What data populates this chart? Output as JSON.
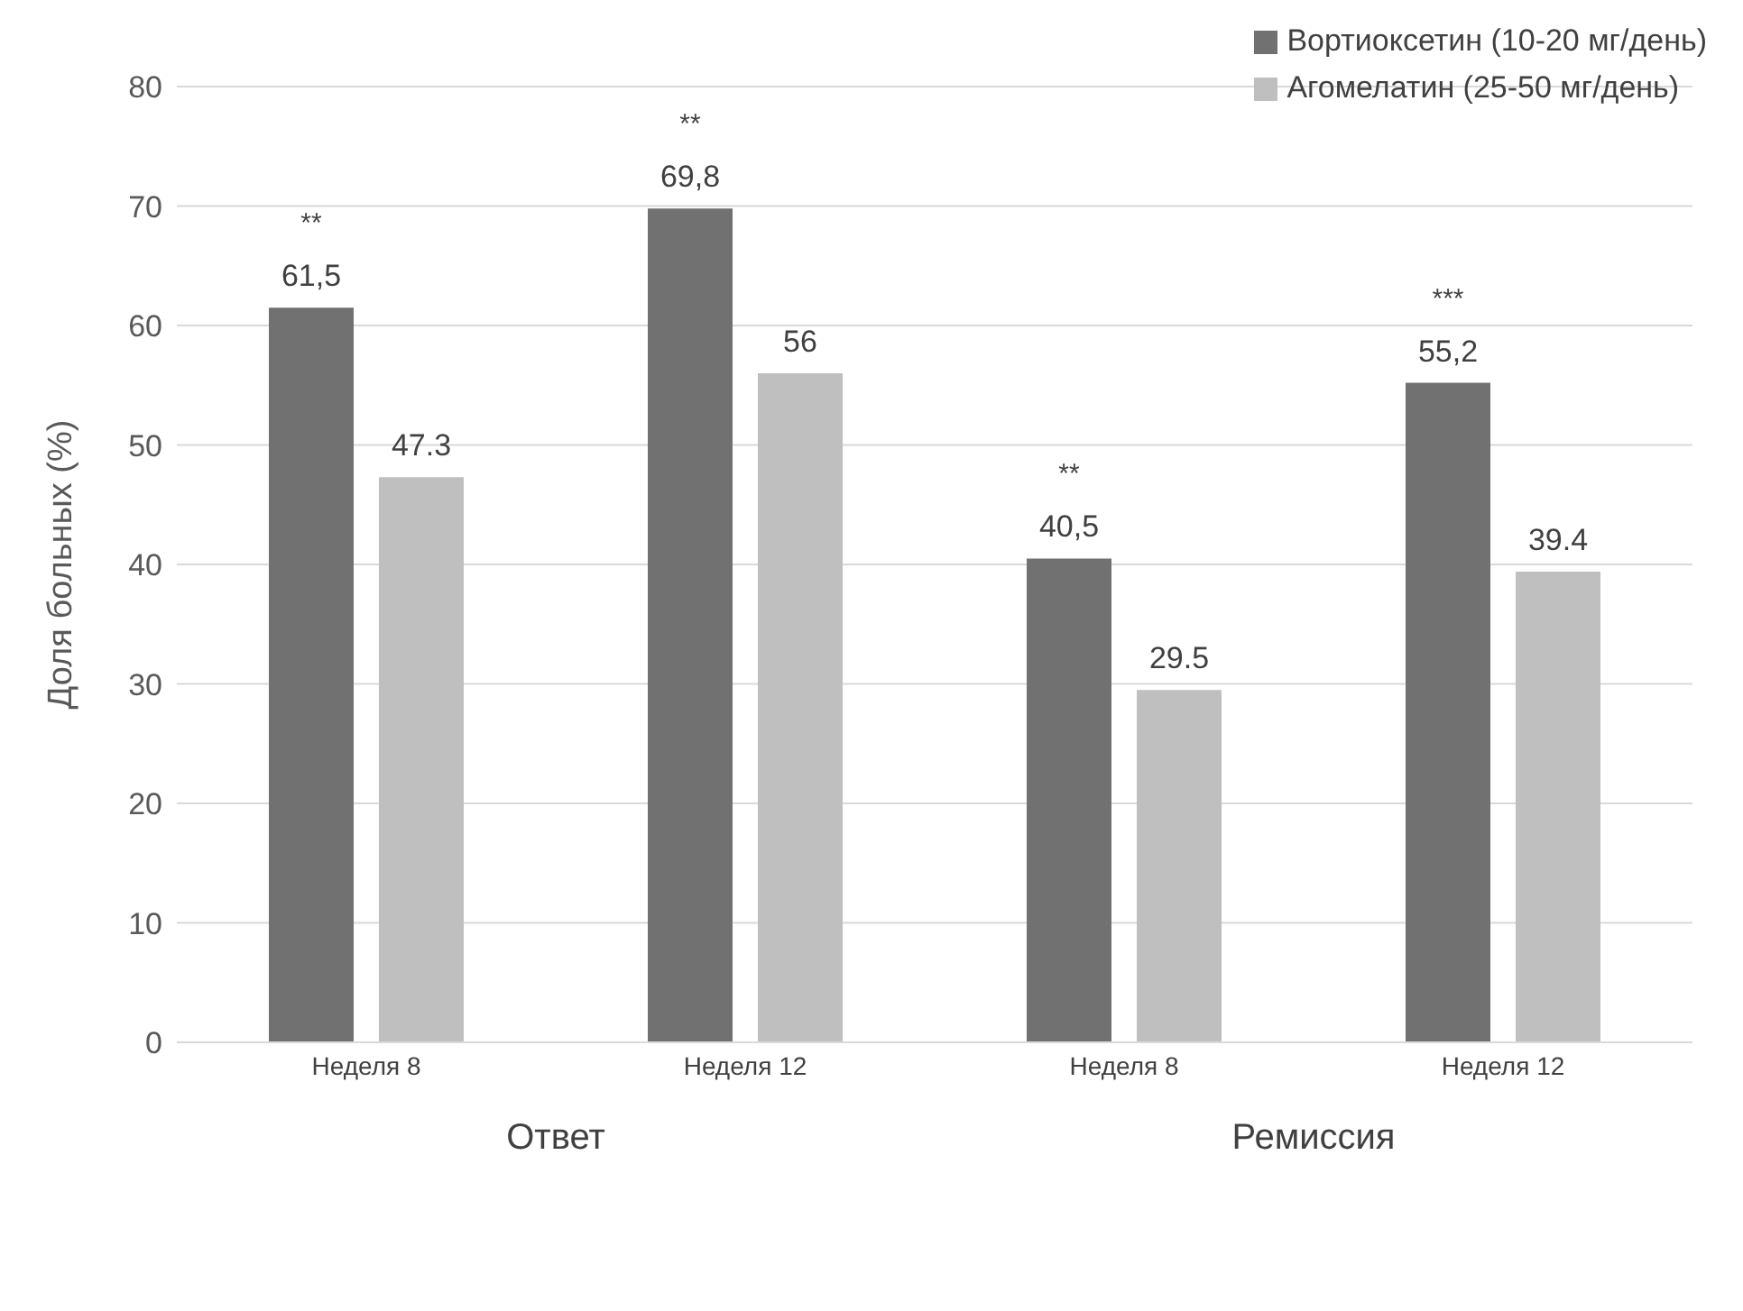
{
  "chart_data": {
    "type": "bar",
    "ylabel": "Доля больных (%)",
    "categories": [
      "Неделя 8",
      "Неделя 12",
      "Неделя 8",
      "Неделя 12"
    ],
    "series": [
      {
        "name": "Вортиоксетин (10-20 мг/день)",
        "color": "#717171",
        "values": [
          61.5,
          69.8,
          40.5,
          55.2
        ],
        "value_labels": [
          "61,5",
          "69,8",
          "40,5",
          "55,2"
        ]
      },
      {
        "name": "Агомелатин (25-50 мг/день)",
        "color": "#bfbfbf",
        "values": [
          47.3,
          56,
          29.5,
          39.4
        ],
        "value_labels": [
          "47.3",
          "56",
          "29.5",
          "39.4"
        ]
      }
    ],
    "annotations": [
      "**",
      "**",
      "**",
      "***",
      "Ответ",
      "Ремиссия"
    ],
    "ylim": [
      0,
      80
    ],
    "yticks": [
      0,
      10,
      20,
      30,
      40,
      50,
      60,
      70,
      80
    ],
    "grid": "y",
    "legend": "top right"
  }
}
